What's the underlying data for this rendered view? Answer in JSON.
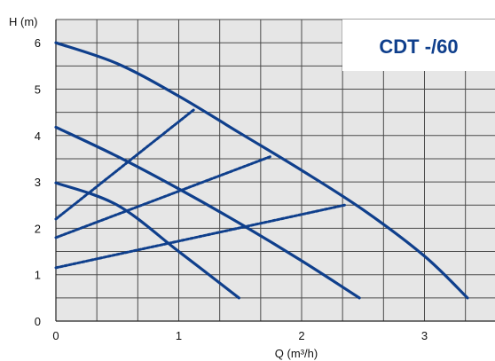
{
  "colors": {
    "plot_background": "#e6e6e6",
    "grid": "#4a4a4a",
    "curve": "#0f3f8c",
    "title_box": "#ffffff"
  },
  "chart_data": {
    "type": "line",
    "title": "CDT -/60",
    "xlabel": "Q (m³/h)",
    "ylabel": "H (m)",
    "xlim": [
      0,
      3.6
    ],
    "ylim": [
      0,
      6.3
    ],
    "xticks": [
      "0",
      "1",
      "2",
      "3"
    ],
    "yticks": [
      "0",
      "1",
      "2",
      "3",
      "4",
      "5",
      "6"
    ],
    "grid": true,
    "title_placement": "top-right",
    "series": [
      {
        "style": "solid",
        "x": [
          0,
          0.5,
          1.0,
          1.5,
          2.0,
          2.5,
          3.0,
          3.35
        ],
        "y": [
          6.0,
          5.55,
          4.85,
          4.05,
          3.25,
          2.4,
          1.4,
          0.5
        ]
      },
      {
        "style": "solid",
        "x": [
          0,
          0.5,
          1.0,
          1.5,
          2.0,
          2.47
        ],
        "y": [
          4.18,
          3.55,
          2.85,
          2.1,
          1.3,
          0.5
        ]
      },
      {
        "style": "solid",
        "x": [
          0,
          0.5,
          1.0,
          1.49
        ],
        "y": [
          2.98,
          2.5,
          1.5,
          0.5
        ]
      },
      {
        "style": "dashed",
        "x": [
          0,
          1.12
        ],
        "y": [
          2.2,
          4.55
        ]
      },
      {
        "style": "dashed",
        "x": [
          0,
          1.75
        ],
        "y": [
          1.8,
          3.55
        ]
      },
      {
        "style": "dashed",
        "x": [
          0,
          2.35
        ],
        "y": [
          1.15,
          2.5
        ]
      }
    ]
  }
}
